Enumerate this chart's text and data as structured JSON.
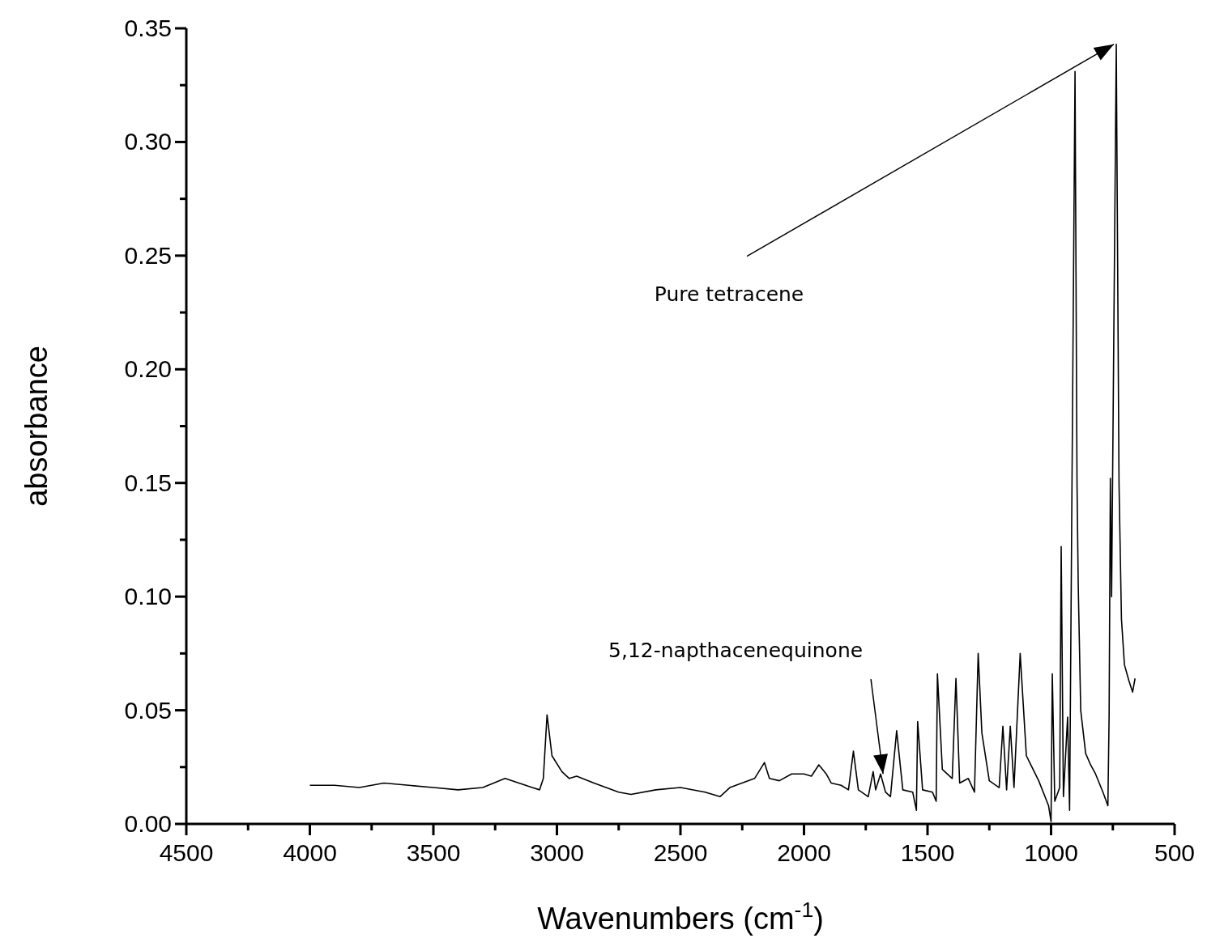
{
  "chart_data": {
    "type": "line",
    "xlabel": "Wavenumbers (cm$^{-1}$)",
    "ylabel": "absorbance",
    "xlim": [
      4500,
      500
    ],
    "xticks": [
      4500,
      {
        "value": 4250,
        "label": null
      },
      4000,
      {
        "value": 3750,
        "label": null
      },
      3500,
      {
        "value": 3250,
        "label": null
      },
      3000,
      {
        "value": 2750,
        "label": null
      },
      2500,
      {
        "value": 2250,
        "label": null
      },
      2000,
      {
        "value": 1750,
        "label": null
      },
      1500,
      {
        "value": 1250,
        "label": null
      },
      1000,
      {
        "value": 750,
        "label": null
      },
      500
    ],
    "ylim": [
      0,
      0.35
    ],
    "yticks": [
      {
        "value": 0,
        "label": "0.00"
      },
      {
        "value": 0.025,
        "label": null
      },
      {
        "value": 0.05,
        "label": "0.05"
      },
      {
        "value": 0.075,
        "label": null
      },
      {
        "value": 0.1,
        "label": "0.10"
      },
      {
        "value": 0.125,
        "label": null
      },
      {
        "value": 0.15,
        "label": "0.15"
      },
      {
        "value": 0.175,
        "label": null
      },
      {
        "value": 0.2,
        "label": "0.20"
      },
      {
        "value": 0.225,
        "label": null
      },
      {
        "value": 0.25,
        "label": "0.25"
      },
      {
        "value": 0.275,
        "label": null
      },
      {
        "value": 0.3,
        "label": "0.30"
      },
      {
        "value": 0.325,
        "label": null
      },
      {
        "value": 0.35,
        "label": "0.35"
      }
    ],
    "marker": "none",
    "line_style": "solid",
    "x": [
      4000,
      3900,
      3800,
      3700,
      3600,
      3500,
      3400,
      3300,
      3210,
      3100,
      3070,
      3055,
      3040,
      3020,
      2980,
      2950,
      2920,
      2850,
      2750,
      2700,
      2600,
      2500,
      2400,
      2340,
      2300,
      2200,
      2160,
      2140,
      2100,
      2050,
      2000,
      1970,
      1940,
      1910,
      1890,
      1850,
      1820,
      1800,
      1780,
      1740,
      1720,
      1710,
      1690,
      1670,
      1650,
      1625,
      1600,
      1560,
      1545,
      1540,
      1520,
      1480,
      1465,
      1460,
      1440,
      1400,
      1385,
      1370,
      1335,
      1310,
      1295,
      1280,
      1250,
      1210,
      1195,
      1180,
      1165,
      1150,
      1125,
      1100,
      1050,
      1010,
      1000,
      995,
      985,
      965,
      959,
      950,
      933,
      925,
      903,
      895,
      890,
      880,
      860,
      840,
      820,
      790,
      770,
      765,
      760,
      755,
      736,
      725,
      715,
      703,
      685,
      670,
      660
    ],
    "series": [
      {
        "color": "#000000",
        "values": [
          0.017,
          0.017,
          0.016,
          0.018,
          0.017,
          0.016,
          0.015,
          0.016,
          0.02,
          0.016,
          0.015,
          0.02,
          0.048,
          0.03,
          0.023,
          0.02,
          0.021,
          0.018,
          0.014,
          0.013,
          0.015,
          0.016,
          0.014,
          0.012,
          0.016,
          0.02,
          0.027,
          0.02,
          0.019,
          0.022,
          0.022,
          0.021,
          0.026,
          0.022,
          0.018,
          0.017,
          0.015,
          0.032,
          0.015,
          0.012,
          0.023,
          0.015,
          0.022,
          0.014,
          0.012,
          0.041,
          0.015,
          0.014,
          0.006,
          0.045,
          0.015,
          0.014,
          0.01,
          0.066,
          0.024,
          0.02,
          0.064,
          0.018,
          0.02,
          0.014,
          0.075,
          0.04,
          0.019,
          0.016,
          0.043,
          0.015,
          0.043,
          0.016,
          0.075,
          0.03,
          0.019,
          0.008,
          0.001,
          0.066,
          0.01,
          0.016,
          0.122,
          0.012,
          0.047,
          0.006,
          0.331,
          0.15,
          0.105,
          0.05,
          0.031,
          0.026,
          0.022,
          0.014,
          0.008,
          0.048,
          0.152,
          0.1,
          0.343,
          0.15,
          0.09,
          0.07,
          0.063,
          0.058,
          0.064
        ]
      }
    ],
    "annotations": [
      {
        "text": "Pure tetracene",
        "x": 736,
        "y": 0.343
      },
      {
        "text": "5,12-napthacenequinone",
        "x": 1680,
        "y": 0.022
      }
    ]
  }
}
